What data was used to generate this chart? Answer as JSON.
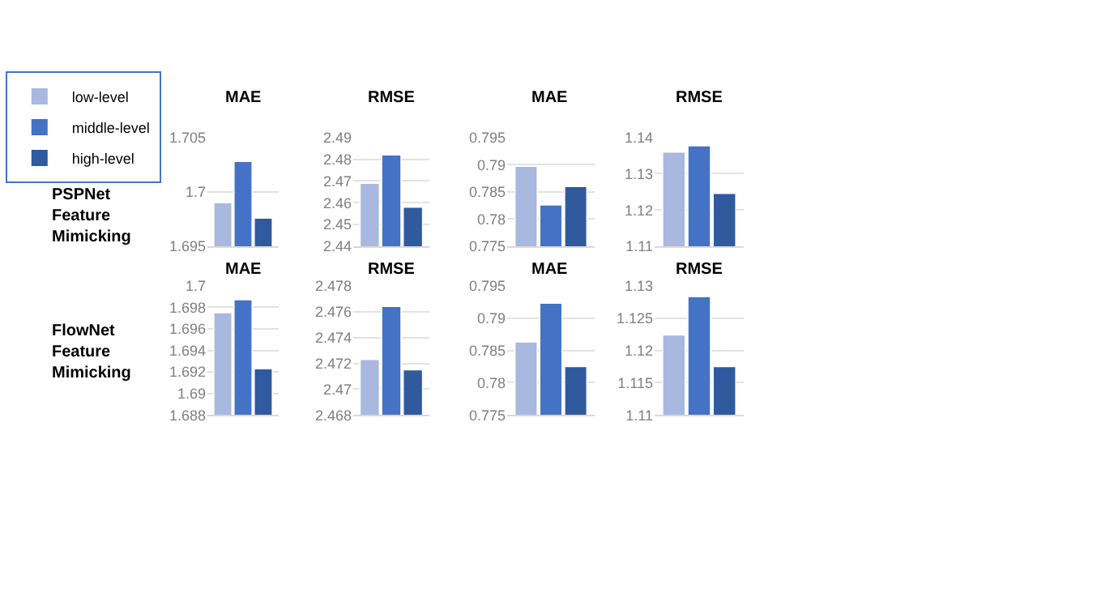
{
  "chart_data": [
    {
      "type": "bar",
      "title": "MAE",
      "annotations": [
        "PSPNet\nFeature\nMimicking"
      ],
      "categories": [
        null
      ],
      "legend": "top left",
      "grid": "y",
      "ylim": [
        1.695,
        1.705
      ],
      "yticks": [
        1.695,
        1.7,
        1.705
      ],
      "series": [
        {
          "name": "low-level",
          "color": "#a9b8df",
          "values": [
            1.699
          ]
        },
        {
          "name": "middle-level",
          "color": "#4472c4",
          "values": [
            1.7028
          ]
        },
        {
          "name": "high-level",
          "color": "#2f5a9e",
          "values": [
            1.6976
          ]
        }
      ]
    },
    {
      "type": "bar",
      "title": "RMSE",
      "categories": [
        null
      ],
      "grid": "y",
      "ylim": [
        2.44,
        2.49
      ],
      "yticks": [
        2.44,
        2.45,
        2.46,
        2.47,
        2.48,
        2.49
      ],
      "series": [
        {
          "color": "#a9b8df",
          "values": [
            2.469
          ]
        },
        {
          "color": "#4472c4",
          "values": [
            2.482
          ]
        },
        {
          "color": "#2f5a9e",
          "values": [
            2.458
          ]
        }
      ]
    },
    {
      "type": "bar",
      "title": "MAE",
      "categories": [
        null
      ],
      "grid": "y",
      "ylim": [
        0.775,
        0.795
      ],
      "yticks": [
        0.775,
        0.78,
        0.785,
        0.79,
        0.795
      ],
      "series": [
        {
          "color": "#a9b8df",
          "values": [
            0.7897
          ]
        },
        {
          "color": "#4472c4",
          "values": [
            0.7826
          ]
        },
        {
          "color": "#2f5a9e",
          "values": [
            0.786
          ]
        }
      ]
    },
    {
      "type": "bar",
      "title": "RMSE",
      "categories": [
        null
      ],
      "grid": "y",
      "ylim": [
        1.11,
        1.14
      ],
      "yticks": [
        1.11,
        1.12,
        1.13,
        1.14
      ],
      "series": [
        {
          "color": "#a9b8df",
          "values": [
            1.136
          ]
        },
        {
          "color": "#4472c4",
          "values": [
            1.1377
          ]
        },
        {
          "color": "#2f5a9e",
          "values": [
            1.1246
          ]
        }
      ]
    },
    {
      "type": "bar",
      "title": "MAE",
      "annotations": [
        "FlowNet\nFeature\nMimicking"
      ],
      "categories": [
        null
      ],
      "grid": "y",
      "ylim": [
        1.688,
        1.7
      ],
      "yticks": [
        1.688,
        1.69,
        1.692,
        1.694,
        1.696,
        1.698,
        1.7
      ],
      "series": [
        {
          "color": "#a9b8df",
          "values": [
            1.6975
          ]
        },
        {
          "color": "#4472c4",
          "values": [
            1.6987
          ]
        },
        {
          "color": "#2f5a9e",
          "values": [
            1.6923
          ]
        }
      ]
    },
    {
      "type": "bar",
      "title": "RMSE",
      "categories": [
        null
      ],
      "grid": "y",
      "ylim": [
        2.468,
        2.478
      ],
      "yticks": [
        2.468,
        2.47,
        2.472,
        2.474,
        2.476,
        2.478
      ],
      "series": [
        {
          "color": "#a9b8df",
          "values": [
            2.4723
          ]
        },
        {
          "color": "#4472c4",
          "values": [
            2.4764
          ]
        },
        {
          "color": "#2f5a9e",
          "values": [
            2.4715
          ]
        }
      ]
    },
    {
      "type": "bar",
      "title": "MAE",
      "categories": [
        null
      ],
      "grid": "y",
      "ylim": [
        0.775,
        0.795
      ],
      "yticks": [
        0.775,
        0.78,
        0.785,
        0.79,
        0.795
      ],
      "series": [
        {
          "color": "#a9b8df",
          "values": [
            0.7863
          ]
        },
        {
          "color": "#4472c4",
          "values": [
            0.7923
          ]
        },
        {
          "color": "#2f5a9e",
          "values": [
            0.7825
          ]
        }
      ]
    },
    {
      "type": "bar",
      "title": "RMSE",
      "categories": [
        null
      ],
      "grid": "y",
      "ylim": [
        1.11,
        1.13
      ],
      "yticks": [
        1.11,
        1.115,
        1.12,
        1.125,
        1.13
      ],
      "series": [
        {
          "color": "#a9b8df",
          "values": [
            1.1224
          ]
        },
        {
          "color": "#4472c4",
          "values": [
            1.1283
          ]
        },
        {
          "color": "#2f5a9e",
          "values": [
            1.1175
          ]
        }
      ]
    }
  ]
}
